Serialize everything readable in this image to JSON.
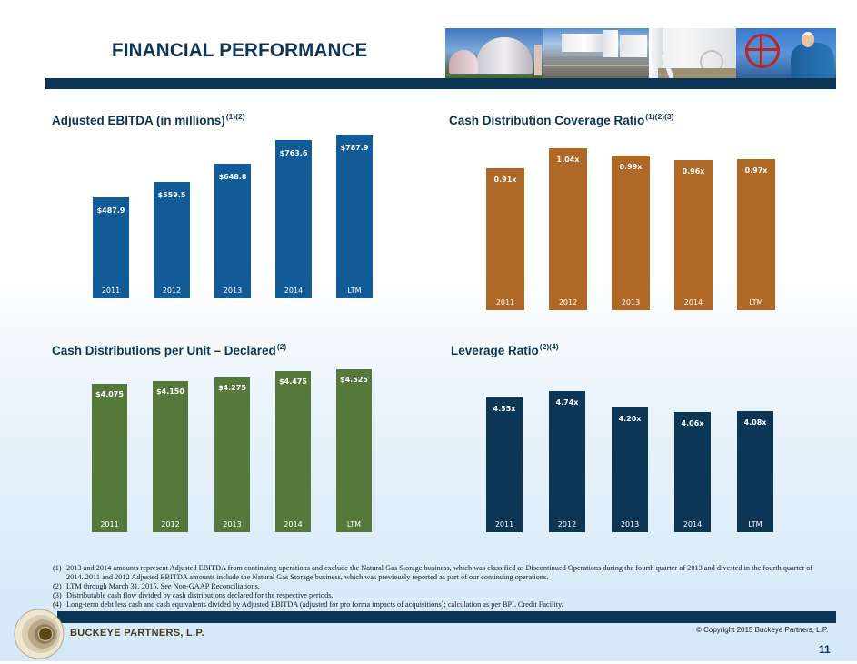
{
  "header": {
    "title": "FINANCIAL PERFORMANCE",
    "photos": [
      "storage-tanks-photo",
      "terminal-facility-photo",
      "pipeline-tank-photo",
      "worker-valve-photo"
    ]
  },
  "chart_data": [
    {
      "id": "ebitda",
      "type": "bar",
      "title": "Adjusted EBITDA (in millions)",
      "title_sup": "(1)(2)",
      "categories": [
        "2011",
        "2012",
        "2013",
        "2014",
        "LTM"
      ],
      "values": [
        487.9,
        559.5,
        648.8,
        763.6,
        787.9
      ],
      "labels": [
        "$487.9",
        "$559.5",
        "$648.8",
        "$763.6",
        "$787.9"
      ],
      "xlabel": "",
      "ylabel": "",
      "color": "#135b96",
      "grid": false
    },
    {
      "id": "coverage",
      "type": "bar",
      "title": "Cash Distribution Coverage Ratio",
      "title_sup": "(1)(2)(3)",
      "categories": [
        "2011",
        "2012",
        "2013",
        "2014",
        "LTM"
      ],
      "values": [
        0.91,
        1.04,
        0.99,
        0.96,
        0.97
      ],
      "labels": [
        "0.91x",
        "1.04x",
        "0.99x",
        "0.96x",
        "0.97x"
      ],
      "xlabel": "",
      "ylabel": "",
      "color": "#b06826",
      "grid": false
    },
    {
      "id": "distributions",
      "type": "bar",
      "title": "Cash Distributions per Unit – Declared",
      "title_sup": "(2)",
      "categories": [
        "2011",
        "2012",
        "2013",
        "2014",
        "LTM"
      ],
      "values": [
        4.075,
        4.15,
        4.275,
        4.475,
        4.525
      ],
      "labels": [
        "$4.075",
        "$4.150",
        "$4.275",
        "$4.475",
        "$4.525"
      ],
      "xlabel": "",
      "ylabel": "",
      "color": "#55793a",
      "grid": false
    },
    {
      "id": "leverage",
      "type": "bar",
      "title": "Leverage Ratio",
      "title_sup": "(2)(4)",
      "categories": [
        "2011",
        "2012",
        "2013",
        "2014",
        "LTM"
      ],
      "values": [
        4.55,
        4.74,
        4.2,
        4.06,
        4.08
      ],
      "labels": [
        "4.55x",
        "4.74x",
        "4.20x",
        "4.06x",
        "4.08x"
      ],
      "xlabel": "",
      "ylabel": "",
      "color": "#0b3655",
      "grid": false
    }
  ],
  "footnotes": [
    {
      "num": "(1)",
      "text": "2013 and 2014 amounts represent Adjusted EBITDA from continuing operations and exclude the Natural Gas Storage business, which was classified as Discontinued Operations during the fourth quarter of 2013 and divested in the fourth quarter of 2014.  2011 and 2012 Adjusted EBITDA amounts include the Natural Gas  Storage business, which was previously reported as part of our continuing operations."
    },
    {
      "num": "(2)",
      "text": "LTM through March 31, 2015. See Non-GAAP Reconciliations."
    },
    {
      "num": "(3)",
      "text": "Distributable cash flow divided by cash distributions declared for the respective periods."
    },
    {
      "num": "(4)",
      "text": "Long-term debt less cash and cash equivalents divided by Adjusted EBITDA (adjusted for pro forma impacts of acquisitions); calculation as per BPL Credit Facility."
    }
  ],
  "footer": {
    "company": "BUCKEYE PARTNERS, L.P.",
    "copyright": "© Copyright  2015 Buckeye Partners, L.P.",
    "page_number": "11"
  }
}
